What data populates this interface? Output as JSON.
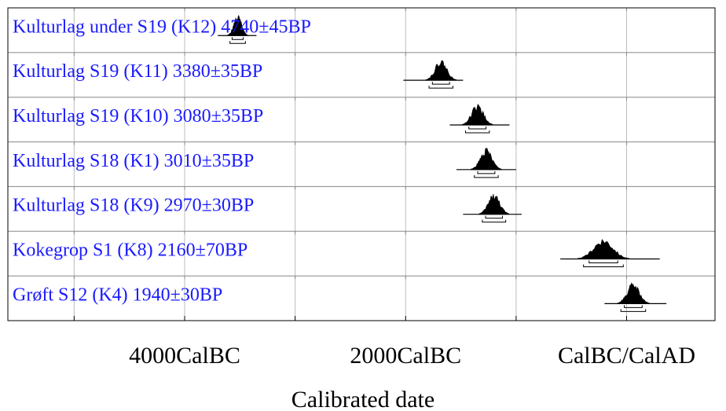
{
  "chart_data": {
    "type": "range-plot",
    "title": "",
    "xlabel": "Calibrated date",
    "ylabel": "",
    "xlim": [
      -5600,
      800
    ],
    "x_ticks": [
      {
        "value": -4000,
        "label": "4000CalBC"
      },
      {
        "value": -2000,
        "label": "2000CalBC"
      },
      {
        "value": 0,
        "label": "CalBC/CalAD"
      }
    ],
    "grid": true,
    "samples": [
      {
        "label": "Kulturlag under  S19 (K12)  4740±45BP",
        "range": [
          -3700,
          -3350
        ],
        "peak": -3520
      },
      {
        "label": "Kulturlag S19 (K11)  3380±35BP",
        "range": [
          -2020,
          -1480
        ],
        "peak": -1680
      },
      {
        "label": "Kulturlag S19 (K10)  3080±35BP",
        "range": [
          -1600,
          -1060
        ],
        "peak": -1350
      },
      {
        "label": "Kulturlag S18 (K1)  3010±35BP",
        "range": [
          -1540,
          -1000
        ],
        "peak": -1270
      },
      {
        "label": "Kulturlag S18 (K9)  2970±30BP",
        "range": [
          -1480,
          -950
        ],
        "peak": -1200
      },
      {
        "label": "Kokegrop S1 (K8)  2160±70BP",
        "range": [
          -600,
          300
        ],
        "peak": -210
      },
      {
        "label": "Grøft S12 (K4)  1940±30BP",
        "range": [
          -200,
          360
        ],
        "peak": 60
      }
    ]
  }
}
